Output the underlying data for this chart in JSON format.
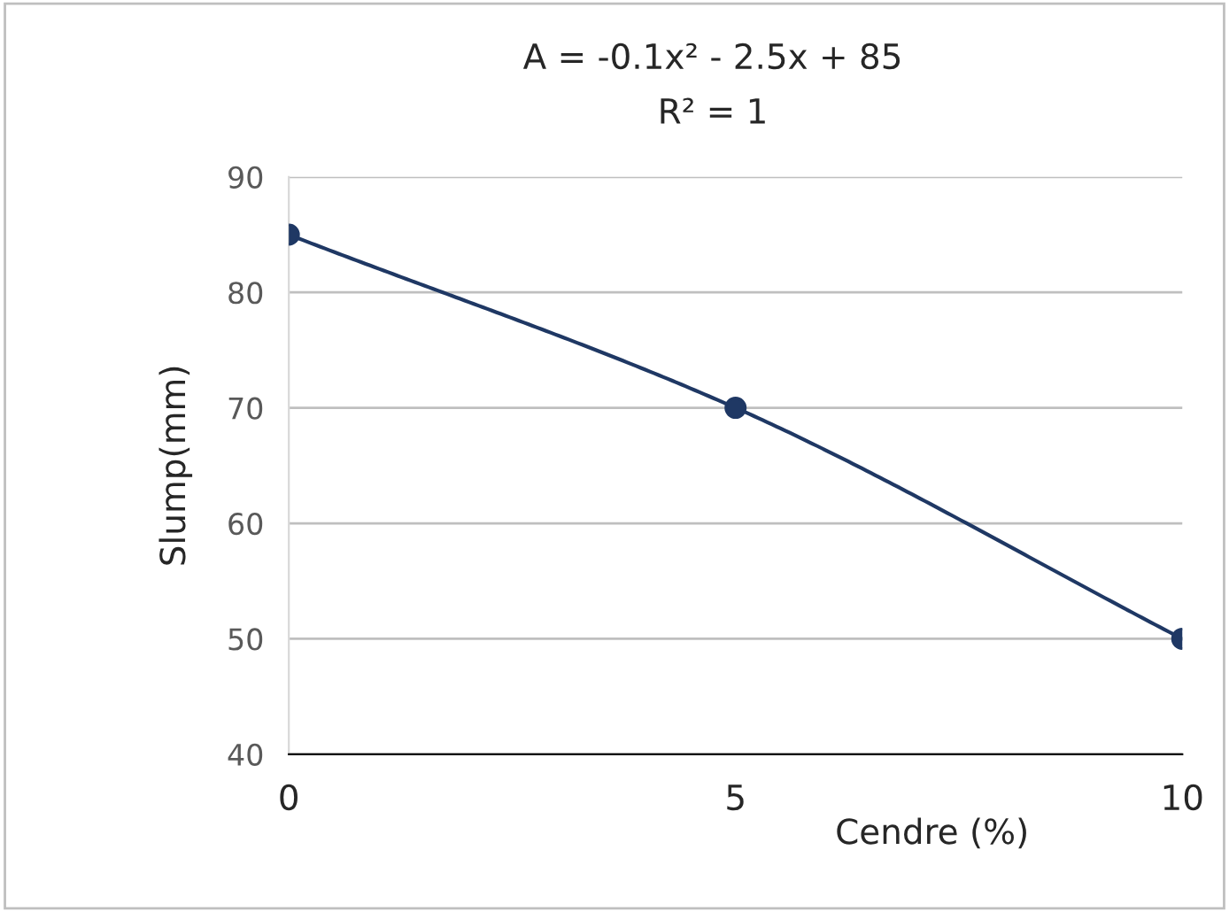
{
  "chart_data": {
    "type": "line",
    "xlabel": "Cendre (%)",
    "ylabel": "Slump(mm)",
    "annotations": [
      "A = -0.1x² - 2.5x + 85",
      "R² = 1"
    ],
    "x": [
      0,
      5,
      10
    ],
    "series": [
      {
        "color": "#1f3864",
        "values": [
          85,
          70,
          50
        ]
      }
    ],
    "marker": "circle",
    "line_style": "solid",
    "xlim": [
      0,
      10
    ],
    "xticks": [
      0,
      5,
      10
    ],
    "ylim": [
      40,
      90
    ],
    "yticks": [
      40,
      50,
      60,
      70,
      80,
      90
    ],
    "grid": "y"
  }
}
